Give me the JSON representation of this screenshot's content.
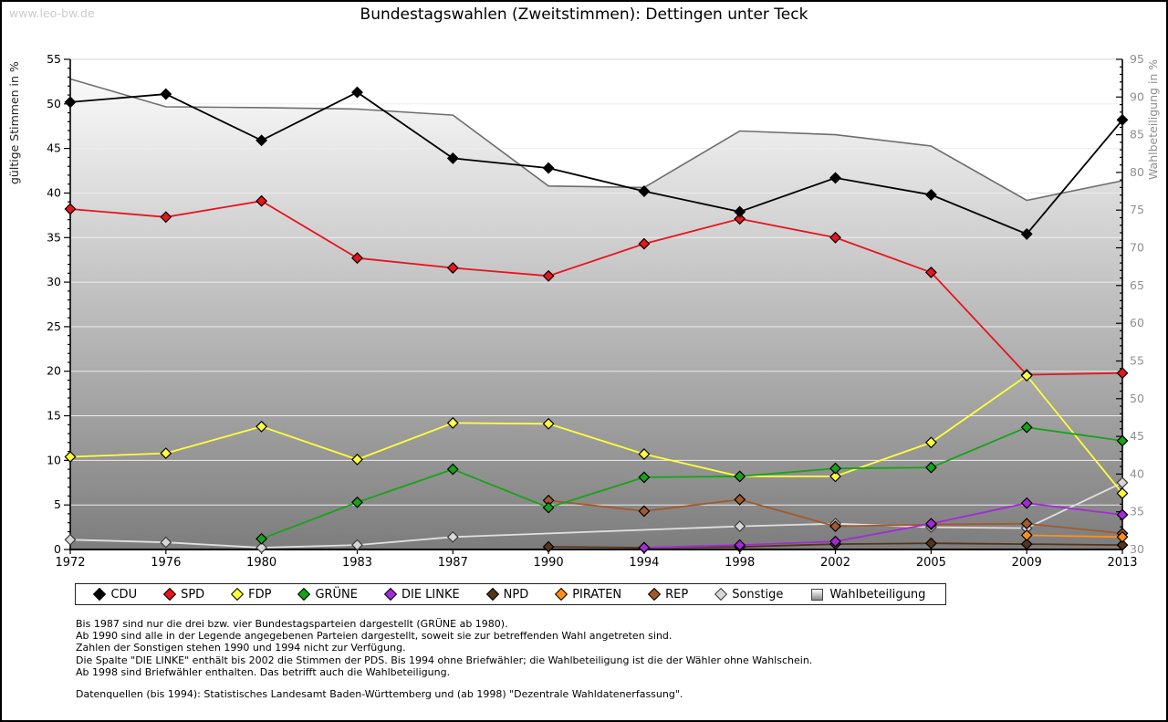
{
  "page": {
    "watermark": "www.leo-bw.de"
  },
  "chart_data": {
    "type": "line",
    "title": "Bundestagswahlen (Zweitstimmen): Dettingen unter Teck",
    "x": [
      1972,
      1976,
      1980,
      1983,
      1987,
      1990,
      1994,
      1998,
      2002,
      2005,
      2009,
      2013
    ],
    "y_left": {
      "label": "gültige Stimmen in %",
      "min": 0,
      "max": 55,
      "tick_step": 5
    },
    "y_right": {
      "label": "Wahlbeteiligung in %",
      "min": 30,
      "max": 95,
      "tick_step": 5
    },
    "grid": true,
    "legend_position": "bottom",
    "series": [
      {
        "name": "CDU",
        "color": "#000000",
        "axis": "left",
        "marker": "diamond",
        "values": [
          50.2,
          51.1,
          45.9,
          51.3,
          43.9,
          42.8,
          40.2,
          37.9,
          41.7,
          39.8,
          35.4,
          48.2
        ]
      },
      {
        "name": "SPD",
        "color": "#e8141e",
        "axis": "left",
        "marker": "diamond",
        "values": [
          38.2,
          37.3,
          39.1,
          32.7,
          31.6,
          30.7,
          34.3,
          37.1,
          35.0,
          31.1,
          19.6,
          19.8
        ]
      },
      {
        "name": "FDP",
        "color": "#ffff3c",
        "axis": "left",
        "marker": "diamond",
        "values": [
          10.4,
          10.8,
          13.8,
          10.1,
          14.2,
          14.1,
          10.7,
          8.2,
          8.2,
          12.0,
          19.5,
          6.3
        ]
      },
      {
        "name": "GRÜNE",
        "color": "#16a316",
        "axis": "left",
        "marker": "diamond",
        "values": [
          null,
          null,
          1.2,
          5.3,
          9.0,
          4.7,
          8.1,
          8.2,
          9.1,
          9.2,
          13.7,
          12.2
        ]
      },
      {
        "name": "DIE LINKE",
        "color": "#a42ad8",
        "axis": "left",
        "marker": "diamond",
        "values": [
          null,
          null,
          null,
          null,
          null,
          null,
          0.2,
          0.5,
          0.9,
          2.9,
          5.2,
          3.9
        ]
      },
      {
        "name": "NPD",
        "color": "#55341a",
        "axis": "left",
        "marker": "diamond",
        "values": [
          null,
          null,
          null,
          null,
          null,
          0.3,
          0.2,
          0.3,
          0.6,
          0.7,
          0.6,
          0.5
        ]
      },
      {
        "name": "PIRATEN",
        "color": "#ff9015",
        "axis": "left",
        "marker": "diamond",
        "values": [
          null,
          null,
          null,
          null,
          null,
          null,
          null,
          null,
          null,
          null,
          1.6,
          1.4
        ]
      },
      {
        "name": "REP",
        "color": "#a3592a",
        "axis": "left",
        "marker": "diamond",
        "values": [
          null,
          null,
          null,
          null,
          null,
          5.5,
          4.3,
          5.6,
          2.6,
          2.8,
          2.9,
          1.8
        ]
      },
      {
        "name": "Sonstige",
        "color": "#e3e3e3",
        "axis": "left",
        "marker": "diamond",
        "values": [
          1.1,
          0.8,
          0.2,
          0.5,
          1.4,
          null,
          null,
          2.6,
          2.9,
          2.5,
          2.4,
          7.5
        ]
      },
      {
        "name": "Wahlbeteiligung",
        "color": "#6e6e6e",
        "axis": "right",
        "marker": "none",
        "type": "area",
        "values": [
          92.4,
          88.7,
          88.6,
          88.4,
          87.6,
          78.2,
          78.0,
          85.5,
          85.0,
          83.5,
          76.3,
          78.9
        ]
      }
    ]
  },
  "footnotes": {
    "lines": [
      "Bis 1987 sind nur die drei bzw. vier Bundestagsparteien dargestellt (GRÜNE ab 1980).",
      "Ab 1990 sind alle in der Legende angegebenen Parteien dargestellt, soweit sie zur betreffenden Wahl angetreten sind.",
      "Zahlen der Sonstigen stehen 1990 und 1994 nicht zur Verfügung.",
      "Die Spalte \"DIE LINKE\" enthält bis 2002 die Stimmen der PDS. Bis 1994 ohne Briefwähler; die Wahlbeteiligung ist die der Wähler ohne Wahlschein.",
      "Ab 1998 sind Briefwähler enthalten. Das betrifft auch die Wahlbeteiligung."
    ],
    "datasource": "Datenquellen (bis 1994): Statistisches Landesamt Baden-Württemberg und (ab 1998) \"Dezentrale Wahldatenerfassung\"."
  }
}
